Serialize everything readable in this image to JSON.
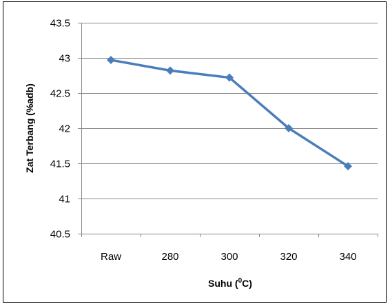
{
  "chart_data": {
    "type": "line",
    "categories": [
      "Raw",
      "280",
      "300",
      "320",
      "340"
    ],
    "series": [
      {
        "values": [
          42.97,
          42.82,
          42.72,
          42.0,
          41.46
        ]
      }
    ],
    "title": "",
    "xlabel_parts": {
      "base": "Suhu (",
      "sup": "0",
      "rest": "C)"
    },
    "ylabel": "Zat Terbang (%adb)",
    "ylim": [
      40.5,
      43.5
    ],
    "yticks": [
      40.5,
      41,
      41.5,
      42,
      42.5,
      43,
      43.5
    ],
    "ytick_labels": [
      "40.5",
      "41",
      "41.5",
      "42",
      "42.5",
      "43",
      "43.5"
    ],
    "grid": true,
    "marker": "diamond",
    "colors": {
      "series": "#4a7ebb",
      "grid": "#868686",
      "axis": "#868686",
      "frame": "#000000"
    }
  }
}
